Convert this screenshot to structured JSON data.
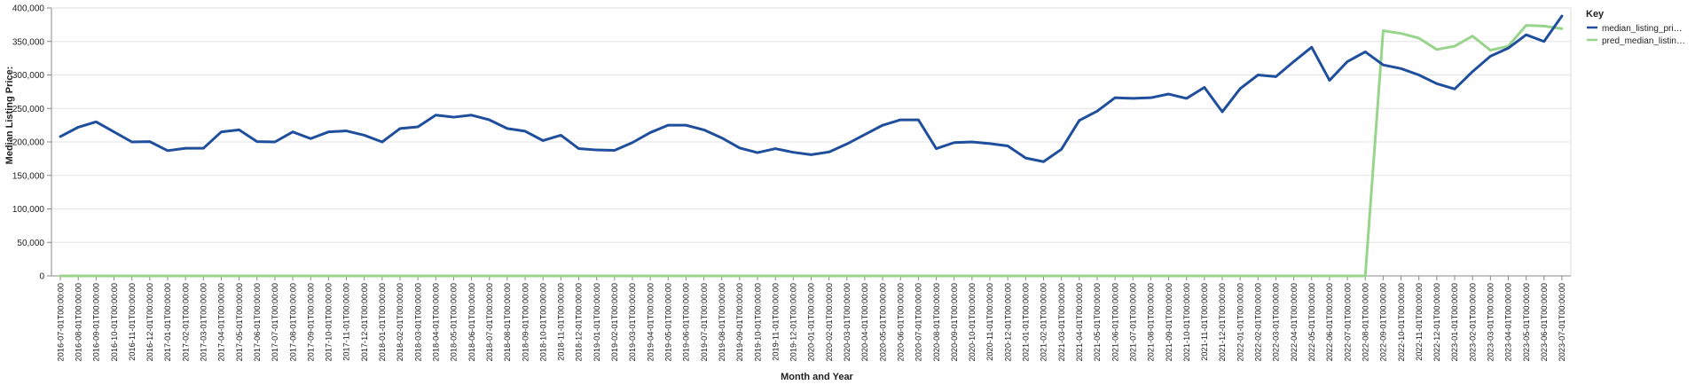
{
  "chart_data": {
    "type": "line",
    "xlabel": "Month and Year",
    "ylabel": "Median Listing Price:",
    "ylim": [
      0,
      400000
    ],
    "y_ticks": [
      0,
      50000,
      100000,
      150000,
      200000,
      250000,
      300000,
      350000,
      400000
    ],
    "y_tick_labels": [
      "0",
      "50,000",
      "100,000",
      "150,000",
      "200,000",
      "250,000",
      "300,000",
      "350,000",
      "400,000"
    ],
    "grid": true,
    "legend": {
      "title": "Key",
      "placement": "right",
      "entries": [
        "median_listing_pri…",
        "pred_median_listin…"
      ]
    },
    "x": [
      "2016-07-01T00:00:00",
      "2016-08-01T00:00:00",
      "2016-09-01T00:00:00",
      "2016-10-01T00:00:00",
      "2016-11-01T00:00:00",
      "2016-12-01T00:00:00",
      "2017-01-01T00:00:00",
      "2017-02-01T00:00:00",
      "2017-03-01T00:00:00",
      "2017-04-01T00:00:00",
      "2017-05-01T00:00:00",
      "2017-06-01T00:00:00",
      "2017-07-01T00:00:00",
      "2017-08-01T00:00:00",
      "2017-09-01T00:00:00",
      "2017-10-01T00:00:00",
      "2017-11-01T00:00:00",
      "2017-12-01T00:00:00",
      "2018-01-01T00:00:00",
      "2018-02-01T00:00:00",
      "2018-03-01T00:00:00",
      "2018-04-01T00:00:00",
      "2018-05-01T00:00:00",
      "2018-06-01T00:00:00",
      "2018-07-01T00:00:00",
      "2018-08-01T00:00:00",
      "2018-09-01T00:00:00",
      "2018-10-01T00:00:00",
      "2018-11-01T00:00:00",
      "2018-12-01T00:00:00",
      "2019-01-01T00:00:00",
      "2019-02-01T00:00:00",
      "2019-03-01T00:00:00",
      "2019-04-01T00:00:00",
      "2019-05-01T00:00:00",
      "2019-06-01T00:00:00",
      "2019-07-01T00:00:00",
      "2019-08-01T00:00:00",
      "2019-09-01T00:00:00",
      "2019-10-01T00:00:00",
      "2019-11-01T00:00:00",
      "2019-12-01T00:00:00",
      "2020-01-01T00:00:00",
      "2020-02-01T00:00:00",
      "2020-03-01T00:00:00",
      "2020-04-01T00:00:00",
      "2020-05-01T00:00:00",
      "2020-06-01T00:00:00",
      "2020-07-01T00:00:00",
      "2020-08-01T00:00:00",
      "2020-09-01T00:00:00",
      "2020-10-01T00:00:00",
      "2020-11-01T00:00:00",
      "2020-12-01T00:00:00",
      "2021-01-01T00:00:00",
      "2021-02-01T00:00:00",
      "2021-03-01T00:00:00",
      "2021-04-01T00:00:00",
      "2021-05-01T00:00:00",
      "2021-06-01T00:00:00",
      "2021-07-01T00:00:00",
      "2021-08-01T00:00:00",
      "2021-09-01T00:00:00",
      "2021-10-01T00:00:00",
      "2021-11-01T00:00:00",
      "2021-12-01T00:00:00",
      "2022-01-01T00:00:00",
      "2022-02-01T00:00:00",
      "2022-03-01T00:00:00",
      "2022-04-01T00:00:00",
      "2022-05-01T00:00:00",
      "2022-06-01T00:00:00",
      "2022-07-01T00:00:00",
      "2022-08-01T00:00:00",
      "2022-09-01T00:00:00",
      "2022-10-01T00:00:00",
      "2022-11-01T00:00:00",
      "2022-12-01T00:00:00",
      "2023-01-01T00:00:00",
      "2023-02-01T00:00:00",
      "2023-03-01T00:00:00",
      "2023-04-01T00:00:00",
      "2023-05-01T00:00:00",
      "2023-06-01T00:00:00",
      "2023-07-01T00:00:00"
    ],
    "series": [
      {
        "name": "median_listing_pri…",
        "color": "#1f4e9c",
        "values": [
          208000,
          222000,
          230000,
          215000,
          200000,
          200500,
          187000,
          190500,
          190500,
          215000,
          218000,
          200500,
          200000,
          215000,
          205000,
          215000,
          216500,
          210000,
          200000,
          220000,
          222500,
          240000,
          237000,
          240000,
          233000,
          220000,
          216000,
          202000,
          210000,
          190000,
          188000,
          187500,
          199000,
          214000,
          225000,
          225000,
          218000,
          206000,
          191000,
          184000,
          190000,
          184500,
          181000,
          185000,
          197000,
          211000,
          225000,
          233000,
          233000,
          190000,
          199000,
          200000,
          197500,
          194000,
          176000,
          170500,
          189000,
          232000,
          246000,
          266000,
          265000,
          266000,
          271500,
          265000,
          281500,
          245000,
          279500,
          300000,
          297500,
          320000,
          341500,
          292000,
          320000,
          334500,
          315000,
          309500,
          300000,
          287000,
          279000,
          305000,
          328000,
          340000,
          360000,
          350000,
          388000
        ]
      },
      {
        "name": "pred_median_listin…",
        "color": "#98d48c",
        "values": [
          0,
          0,
          0,
          0,
          0,
          0,
          0,
          0,
          0,
          0,
          0,
          0,
          0,
          0,
          0,
          0,
          0,
          0,
          0,
          0,
          0,
          0,
          0,
          0,
          0,
          0,
          0,
          0,
          0,
          0,
          0,
          0,
          0,
          0,
          0,
          0,
          0,
          0,
          0,
          0,
          0,
          0,
          0,
          0,
          0,
          0,
          0,
          0,
          0,
          0,
          0,
          0,
          0,
          0,
          0,
          0,
          0,
          0,
          0,
          0,
          0,
          0,
          0,
          0,
          0,
          0,
          0,
          0,
          0,
          0,
          0,
          0,
          0,
          0,
          366000,
          362000,
          355000,
          338000,
          343000,
          358000,
          337000,
          343000,
          374000,
          373000,
          369000
        ]
      }
    ]
  }
}
